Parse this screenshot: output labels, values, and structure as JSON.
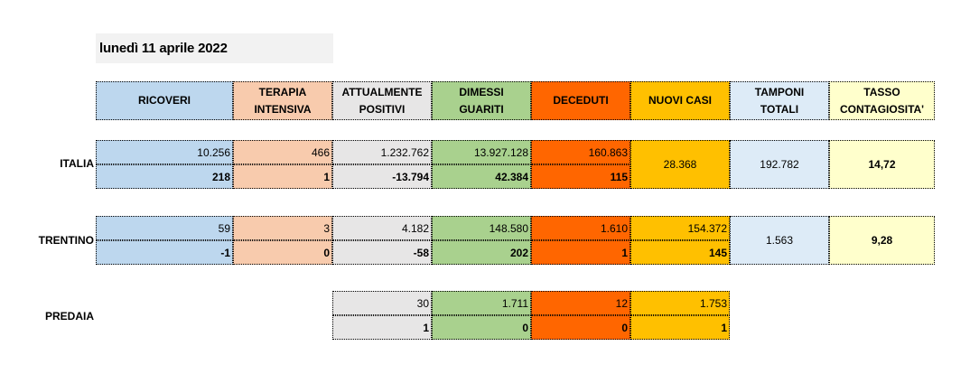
{
  "date": "lunedì 11 aprile 2022",
  "headers": {
    "ricoveri": "RICOVERI",
    "terapia_1": "TERAPIA",
    "terapia_2": "INTENSIVA",
    "attualmente_1": "ATTUALMENTE",
    "attualmente_2": "POSITIVI",
    "dimessi_1": "DIMESSI",
    "dimessi_2": "GUARITI",
    "deceduti": "DECEDUTI",
    "nuovi_casi": "NUOVI CASI",
    "tamponi_1": "TAMPONI",
    "tamponi_2": "TOTALI",
    "tasso_1": "TASSO",
    "tasso_2": "CONTAGIOSITA'"
  },
  "italia": {
    "label": "ITALIA",
    "ricoveri": "10.256",
    "ricoveri_delta": "218",
    "terapia": "466",
    "terapia_delta": "1",
    "attualmente": "1.232.762",
    "attualmente_delta": "-13.794",
    "dimessi": "13.927.128",
    "dimessi_delta": "42.384",
    "deceduti": "160.863",
    "deceduti_delta": "115",
    "nuovi_casi": "28.368",
    "tamponi": "192.782",
    "tasso": "14,72"
  },
  "trentino": {
    "label": "TRENTINO",
    "ricoveri": "59",
    "ricoveri_delta": "-1",
    "terapia": "3",
    "terapia_delta": "0",
    "attualmente": "4.182",
    "attualmente_delta": "-58",
    "dimessi": "148.580",
    "dimessi_delta": "202",
    "deceduti": "1.610",
    "deceduti_delta": "1",
    "nuovi_casi": "154.372",
    "nuovi_casi_delta": "145",
    "tamponi": "1.563",
    "tasso": "9,28"
  },
  "predaia": {
    "label": "PREDAIA",
    "attualmente": "30",
    "attualmente_delta": "1",
    "dimessi": "1.711",
    "dimessi_delta": "0",
    "deceduti": "12",
    "deceduti_delta": "0",
    "nuovi_casi": "1.753",
    "nuovi_casi_delta": "1"
  }
}
